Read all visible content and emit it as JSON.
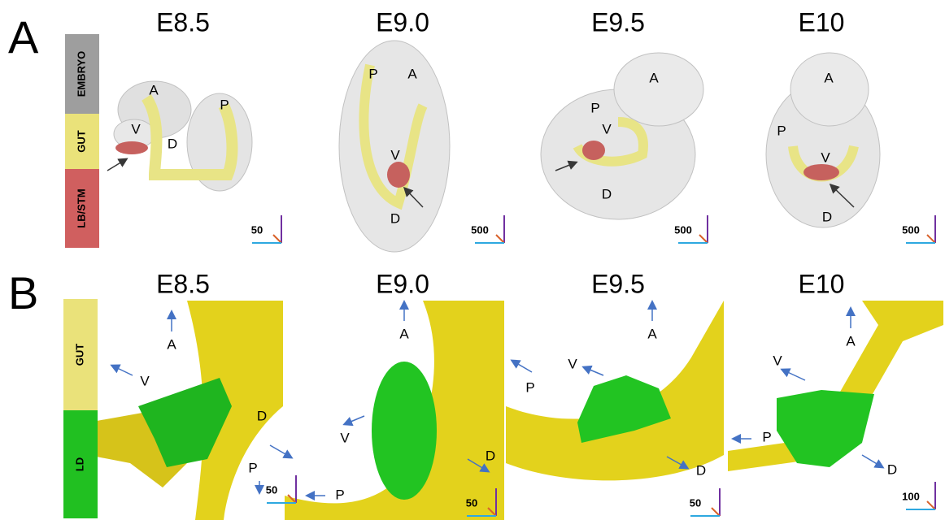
{
  "panels": [
    {
      "label": "A",
      "legend": [
        "EMBRYO",
        "GUT",
        "LB/STM"
      ],
      "images": [
        {
          "stage": "E8.5",
          "labels": [
            "A",
            "P",
            "V",
            "D"
          ],
          "scale": "50"
        },
        {
          "stage": "E9.0",
          "labels": [
            "P",
            "A",
            "V",
            "D"
          ],
          "scale": "500"
        },
        {
          "stage": "E9.5",
          "labels": [
            "A",
            "P",
            "V",
            "D"
          ],
          "scale": "500"
        },
        {
          "stage": "E10",
          "labels": [
            "A",
            "P",
            "V",
            "D"
          ],
          "scale": "500"
        }
      ]
    },
    {
      "label": "B",
      "legend": [
        "GUT",
        "LD"
      ],
      "images": [
        {
          "stage": "E8.5",
          "labels": [
            "A",
            "V",
            "D",
            "P"
          ],
          "scale": "50"
        },
        {
          "stage": "E9.0",
          "labels": [
            "A",
            "V",
            "P",
            "D"
          ],
          "scale": "50"
        },
        {
          "stage": "E9.5",
          "labels": [
            "A",
            "V",
            "P",
            "D"
          ],
          "scale": "50"
        },
        {
          "stage": "E10",
          "labels": [
            "A",
            "V",
            "P",
            "D"
          ],
          "scale": "100"
        }
      ]
    }
  ]
}
